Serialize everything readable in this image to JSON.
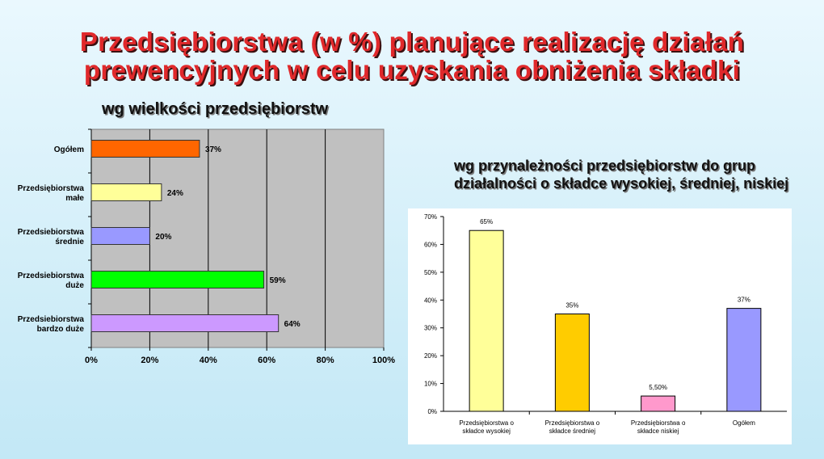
{
  "title": {
    "line1": "Przedsiębiorstwa (w %) planujące realizację działań",
    "line2": "prewencyjnych w celu uzyskania obniżenia składki"
  },
  "left_subtitle": "wg wielkości przedsiębiorstw",
  "right_subtitle": "wg przynależności przedsiębiorstw do grup działalności o składce wysokiej, średniej, niskiej",
  "chart_data": [
    {
      "type": "bar",
      "orientation": "horizontal",
      "title": "wg wielkości przedsiębiorstw",
      "categories": [
        [
          "Ogółem"
        ],
        [
          "Przedsiębiorstwa",
          "małe"
        ],
        [
          "Przedsiebiorstwa",
          "średnie"
        ],
        [
          "Przedsiebiorstwa",
          "duże"
        ],
        [
          "Przedsiebiorstwa",
          "bardzo duże"
        ]
      ],
      "values": [
        37,
        24,
        20,
        59,
        64
      ],
      "value_labels": [
        "37%",
        "24%",
        "20%",
        "59%",
        "64%"
      ],
      "colors": [
        "#ff6600",
        "#ffff99",
        "#9999ff",
        "#00ff00",
        "#cc99ff"
      ],
      "xlim": [
        0,
        100
      ],
      "x_ticks": [
        "0%",
        "20%",
        "40%",
        "60%",
        "80%",
        "100%"
      ],
      "grid": true,
      "plot_background": "#c0c0c0"
    },
    {
      "type": "bar",
      "orientation": "vertical",
      "title": "wg przynależności przedsiębiorstw do grup działalności o składce wysokiej, średniej, niskiej",
      "categories": [
        [
          "Przedsiębiorstwa o",
          "składce wysokiej"
        ],
        [
          "Przedsiębiorstwa o",
          "składce średniej"
        ],
        [
          "Przedsiębiorstwa o",
          "składce niskiej"
        ],
        [
          "Ogółem"
        ]
      ],
      "values": [
        65,
        35,
        5.5,
        37
      ],
      "value_labels": [
        "65%",
        "35%",
        "5,50%",
        "37%"
      ],
      "colors": [
        "#ffff99",
        "#ffcc00",
        "#ff99cc",
        "#9999ff"
      ],
      "ylim": [
        0,
        70
      ],
      "y_ticks": [
        "0%",
        "10%",
        "20%",
        "30%",
        "40%",
        "50%",
        "60%",
        "70%"
      ],
      "grid": false,
      "plot_background": "#ffffff"
    }
  ]
}
